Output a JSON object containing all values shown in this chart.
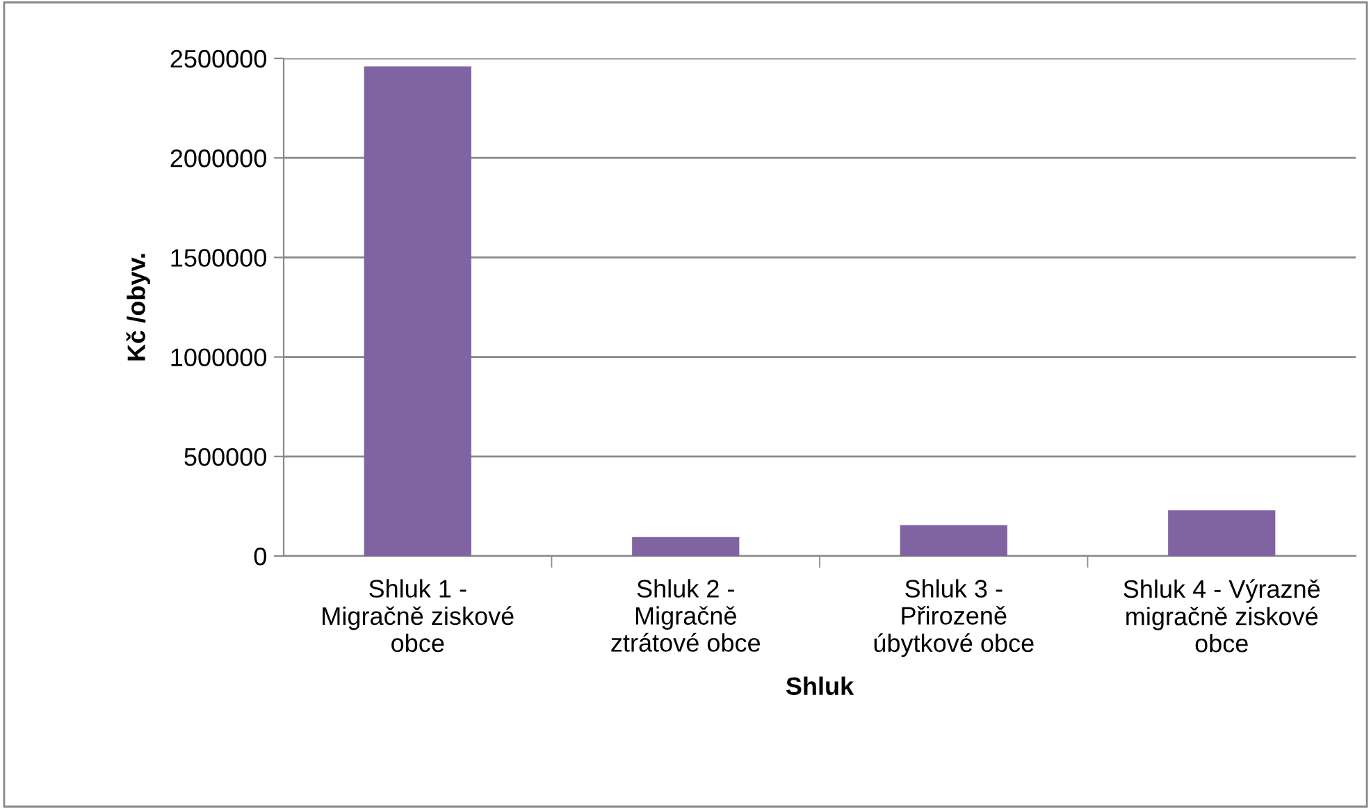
{
  "chart_data": {
    "type": "bar",
    "xlabel": "Shluk",
    "ylabel": "Kč /obyv.",
    "categories": [
      "Shluk 1 -\nMigračně ziskové\nobce",
      "Shluk 2 -\nMigračně\nztrátové obce",
      "Shluk 3 -\nPřirozeně\núbytkové obce",
      "Shluk 4 - Výrazně\nmigračně ziskové\nobce"
    ],
    "values": [
      2460000,
      95000,
      155000,
      230000
    ],
    "color": "#8064a2",
    "ylim": [
      0,
      2500000
    ],
    "yticks": [
      0,
      500000,
      1000000,
      1500000,
      2000000,
      2500000
    ],
    "grid": "y",
    "legend": false
  }
}
